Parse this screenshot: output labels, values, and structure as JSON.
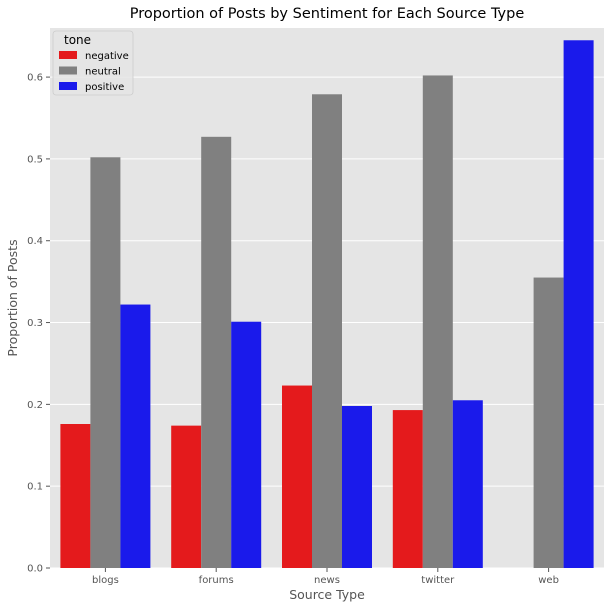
{
  "chart_data": {
    "type": "bar",
    "title": "Proportion of Posts by Sentiment for Each Source Type",
    "xlabel": "Source Type",
    "ylabel": "Proportion of Posts",
    "categories": [
      "blogs",
      "forums",
      "news",
      "twitter",
      "web"
    ],
    "ylim": [
      0,
      0.66
    ],
    "yticks": [
      "0.0",
      "0.1",
      "0.2",
      "0.3",
      "0.4",
      "0.5",
      "0.6"
    ],
    "grid": true,
    "legend": {
      "title": "tone",
      "position": "top-left"
    },
    "series": [
      {
        "name": "negative",
        "color": "#e41a1c",
        "values": [
          0.176,
          0.174,
          0.223,
          0.193,
          null
        ]
      },
      {
        "name": "neutral",
        "color": "#808080",
        "values": [
          0.502,
          0.527,
          0.579,
          0.602,
          0.355
        ]
      },
      {
        "name": "positive",
        "color": "#1a1aeb",
        "values": [
          0.322,
          0.301,
          0.198,
          0.205,
          0.645
        ]
      }
    ]
  }
}
